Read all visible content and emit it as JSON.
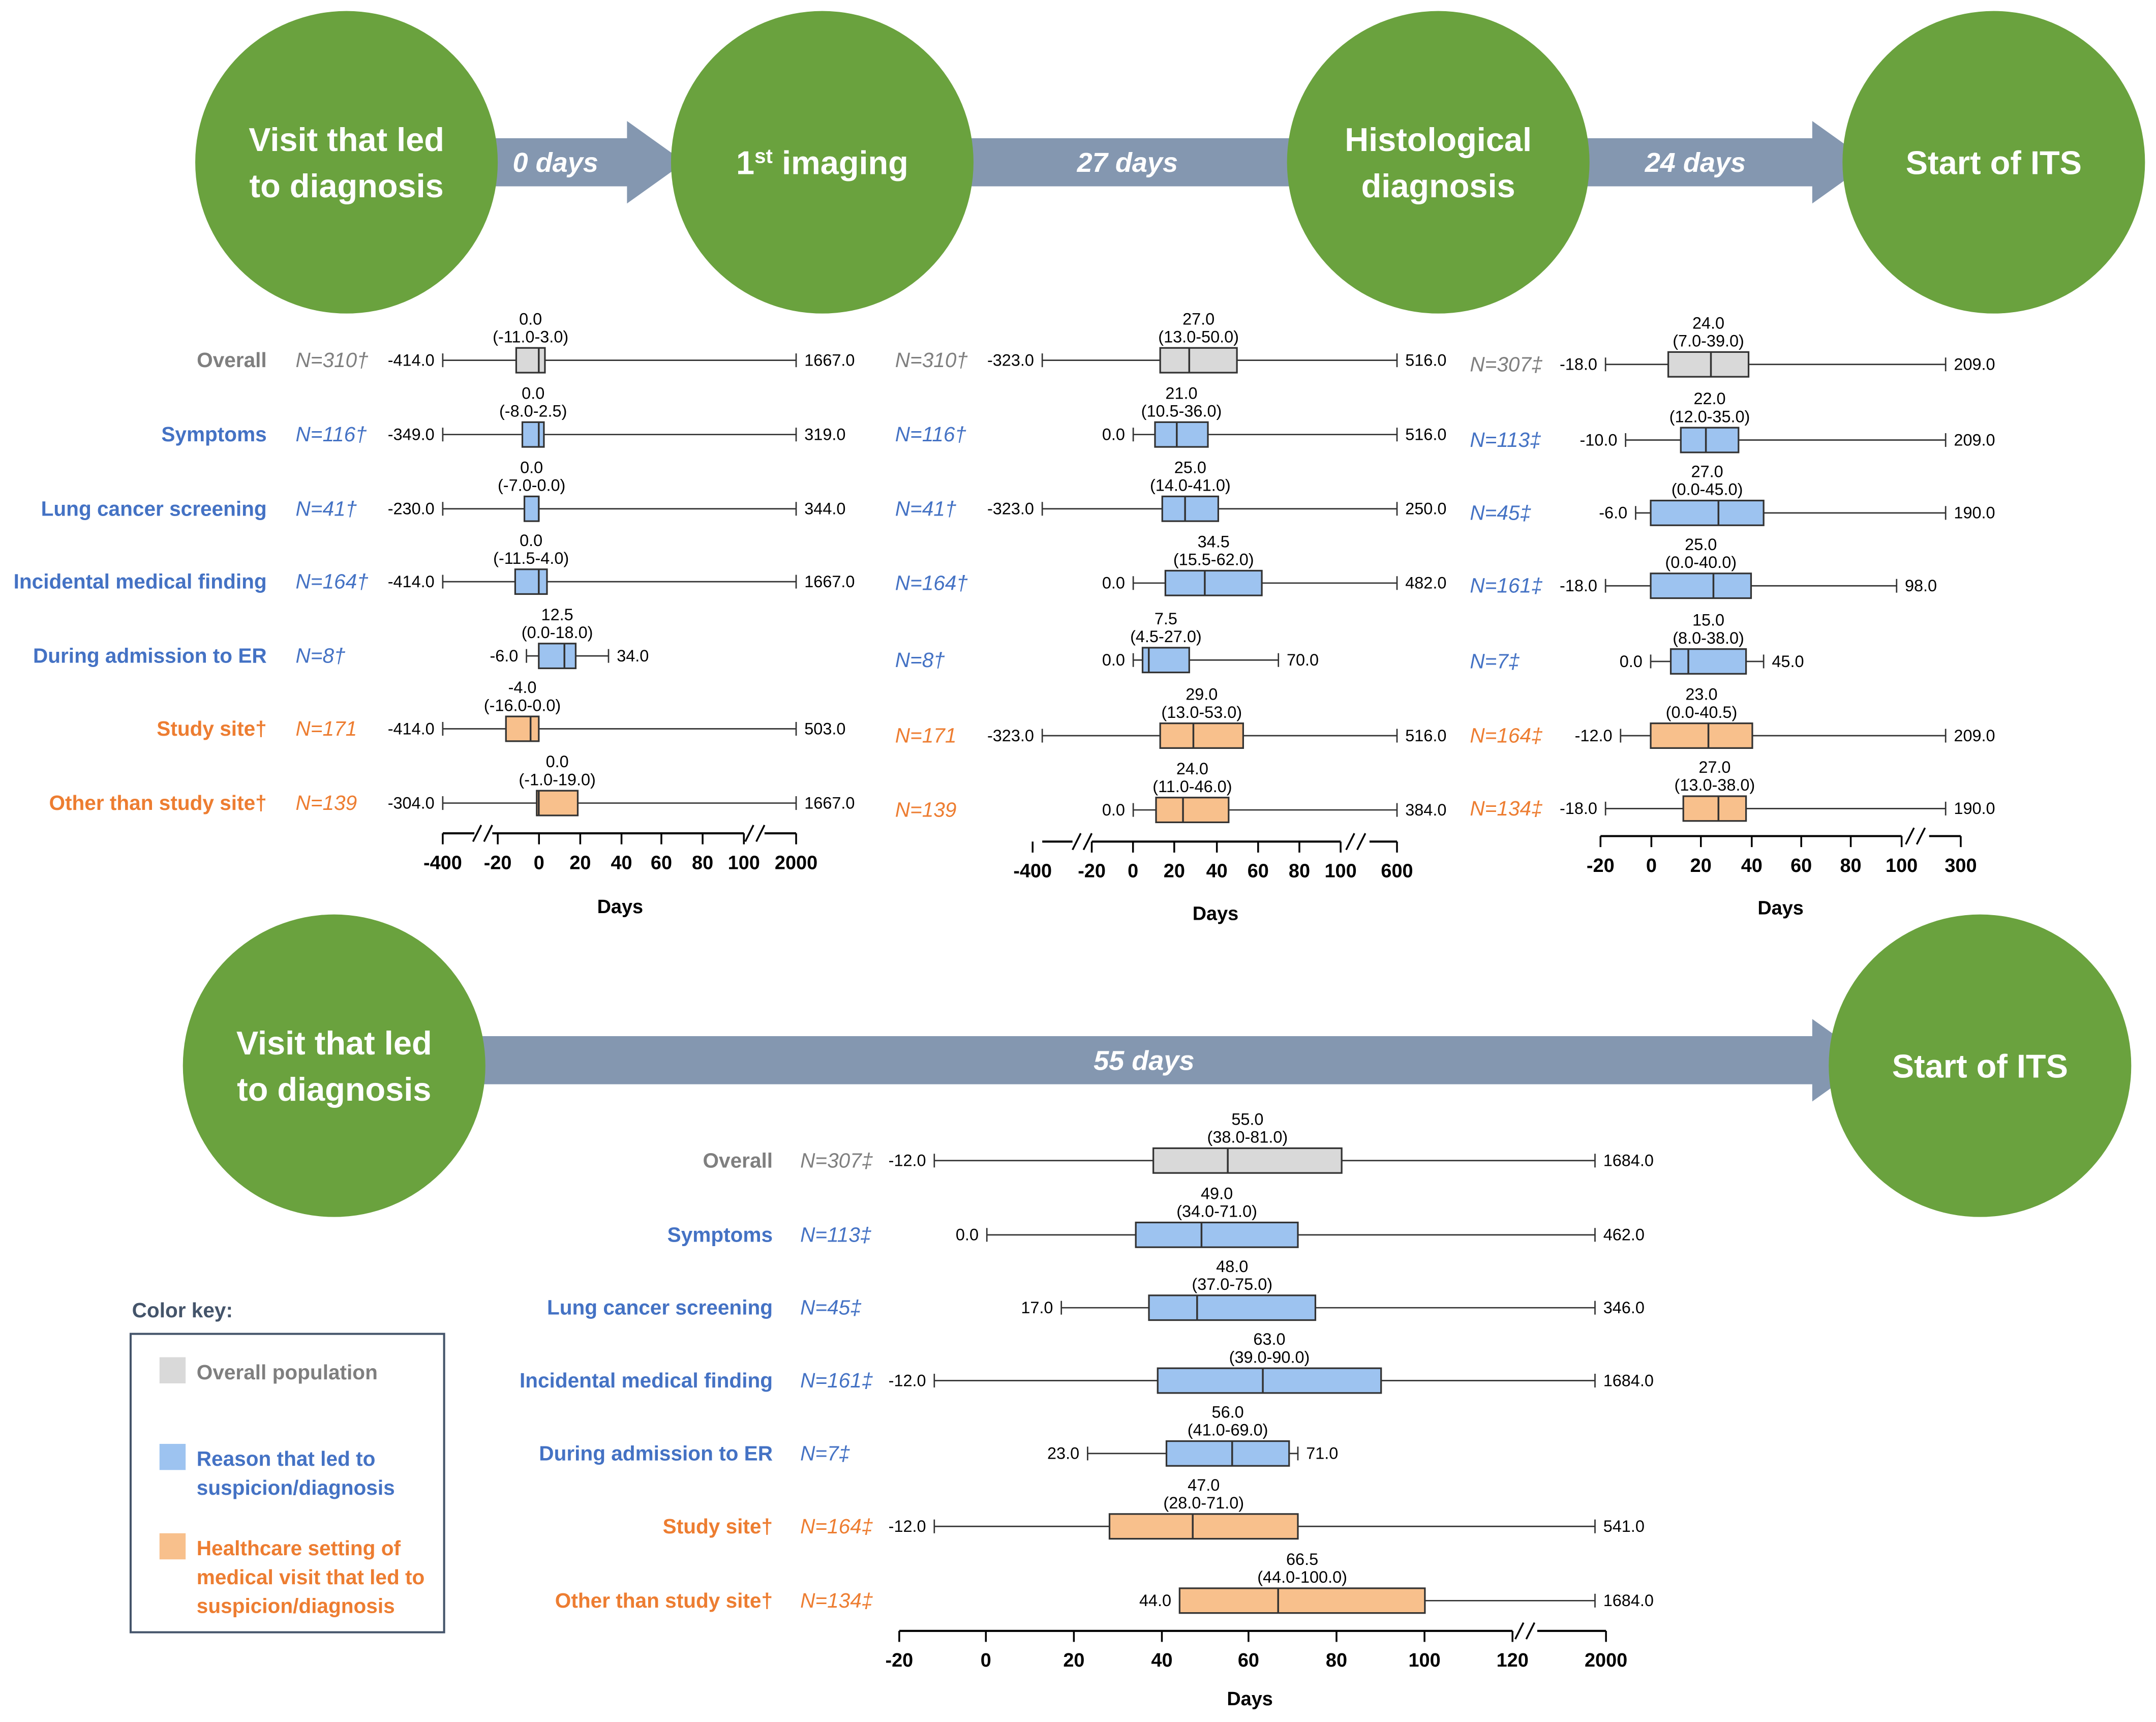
{
  "colors": {
    "circle": "#6aa23e",
    "arrow": "#8497b0",
    "overall_fill": "#d9d9d9",
    "overall_text": "#7f7f7f",
    "reason_fill": "#9dc3f0",
    "reason_text": "#4472c4",
    "setting_fill": "#f8c08c",
    "setting_text": "#ed7d31",
    "key_border": "#44546a"
  },
  "flow_top": {
    "circles": [
      [
        "Visit that led",
        "to diagnosis"
      ],
      [
        "1st imaging"
      ],
      [
        "Histological",
        "diagnosis"
      ],
      [
        "Start of ITS"
      ]
    ],
    "arrows": [
      "0 days",
      "27 days",
      "24 days"
    ]
  },
  "flow_bottom": {
    "circles": [
      [
        "Visit that led",
        "to diagnosis"
      ],
      [
        "Start of ITS"
      ]
    ],
    "arrows": [
      "55 days"
    ]
  },
  "row_labels": [
    {
      "label": "Overall",
      "group": "overall"
    },
    {
      "label": "Symptoms",
      "group": "reason"
    },
    {
      "label": "Lung cancer screening",
      "group": "reason"
    },
    {
      "label": "Incidental medical finding",
      "group": "reason"
    },
    {
      "label": "During admission to ER",
      "group": "reason"
    },
    {
      "label": "Study site†",
      "group": "setting"
    },
    {
      "label": "Other than study site†",
      "group": "setting"
    }
  ],
  "color_key": {
    "title": "Color key:",
    "items": [
      {
        "label": [
          "Overall population"
        ],
        "group": "overall"
      },
      {
        "label": [
          "Reason that led to",
          "suspicion/diagnosis"
        ],
        "group": "reason"
      },
      {
        "label": [
          "Healthcare setting of",
          "medical visit that led to",
          "suspicion/diagnosis"
        ],
        "group": "setting"
      }
    ]
  },
  "chart_data": [
    {
      "type": "boxplot",
      "title": "Visit that led to diagnosis to 1st imaging",
      "xlabel": "Days",
      "x_ticks": [
        "-400",
        "-20",
        "0",
        "20",
        "40",
        "60",
        "80",
        "100",
        "2000"
      ],
      "x_breaks": true,
      "rows": [
        {
          "n": "N=310†",
          "median": "0.0",
          "iqr": "(-11.0-3.0)",
          "min": "-414.0",
          "max": "1667.0",
          "q1": -11,
          "q3": 3,
          "med": 0
        },
        {
          "n": "N=116†",
          "median": "0.0",
          "iqr": "(-8.0-2.5)",
          "min": "-349.0",
          "max": "319.0",
          "q1": -8,
          "q3": 2.5,
          "med": 0
        },
        {
          "n": "N=41†",
          "median": "0.0",
          "iqr": "(-7.0-0.0)",
          "min": "-230.0",
          "max": "344.0",
          "q1": -7,
          "q3": 0,
          "med": 0
        },
        {
          "n": "N=164†",
          "median": "0.0",
          "iqr": "(-11.5-4.0)",
          "min": "-414.0",
          "max": "1667.0",
          "q1": -11.5,
          "q3": 4,
          "med": 0
        },
        {
          "n": "N=8†",
          "median": "12.5",
          "iqr": "(0.0-18.0)",
          "min": "-6.0",
          "max": "34.0",
          "q1": 0,
          "q3": 18,
          "med": 12.5
        },
        {
          "n": "N=171",
          "median": "-4.0",
          "iqr": "(-16.0-0.0)",
          "min": "-414.0",
          "max": "503.0",
          "q1": -16,
          "q3": 0,
          "med": -4
        },
        {
          "n": "N=139",
          "median": "0.0",
          "iqr": "(-1.0-19.0)",
          "min": "-304.0",
          "max": "1667.0",
          "q1": -1,
          "q3": 19,
          "med": 0
        }
      ]
    },
    {
      "type": "boxplot",
      "title": "1st imaging to histological diagnosis",
      "xlabel": "Days",
      "x_ticks": [
        "-400",
        "-20",
        "0",
        "20",
        "40",
        "60",
        "80",
        "100",
        "600"
      ],
      "x_breaks": true,
      "rows": [
        {
          "n": "N=310†",
          "median": "27.0",
          "iqr": "(13.0-50.0)",
          "min": "-323.0",
          "max": "516.0",
          "q1": 13,
          "q3": 50,
          "med": 27
        },
        {
          "n": "N=116†",
          "median": "21.0",
          "iqr": "(10.5-36.0)",
          "min": "0.0",
          "max": "516.0",
          "q1": 10.5,
          "q3": 36,
          "med": 21
        },
        {
          "n": "N=41†",
          "median": "25.0",
          "iqr": "(14.0-41.0)",
          "min": "-323.0",
          "max": "250.0",
          "q1": 14,
          "q3": 41,
          "med": 25
        },
        {
          "n": "N=164†",
          "median": "34.5",
          "iqr": "(15.5-62.0)",
          "min": "0.0",
          "max": "482.0",
          "q1": 15.5,
          "q3": 62,
          "med": 34.5
        },
        {
          "n": "N=8†",
          "median": "7.5",
          "iqr": "(4.5-27.0)",
          "min": "0.0",
          "max": "70.0",
          "q1": 4.5,
          "q3": 27,
          "med": 7.5
        },
        {
          "n": "N=171",
          "median": "29.0",
          "iqr": "(13.0-53.0)",
          "min": "-323.0",
          "max": "516.0",
          "q1": 13,
          "q3": 53,
          "med": 29
        },
        {
          "n": "N=139",
          "median": "24.0",
          "iqr": "(11.0-46.0)",
          "min": "0.0",
          "max": "384.0",
          "q1": 11,
          "q3": 46,
          "med": 24
        }
      ]
    },
    {
      "type": "boxplot",
      "title": "Histological diagnosis to start of ITS",
      "xlabel": "Days",
      "x_ticks": [
        "-20",
        "0",
        "20",
        "40",
        "60",
        "80",
        "100",
        "300"
      ],
      "x_breaks": true,
      "rows": [
        {
          "n": "N=307‡",
          "median": "24.0",
          "iqr": "(7.0-39.0)",
          "min": "-18.0",
          "max": "209.0",
          "q1": 7,
          "q3": 39,
          "med": 24
        },
        {
          "n": "N=113‡",
          "median": "22.0",
          "iqr": "(12.0-35.0)",
          "min": "-10.0",
          "max": "209.0",
          "q1": 12,
          "q3": 35,
          "med": 22
        },
        {
          "n": "N=45‡",
          "median": "27.0",
          "iqr": "(0.0-45.0)",
          "min": "-6.0",
          "max": "190.0",
          "q1": 0,
          "q3": 45,
          "med": 27
        },
        {
          "n": "N=161‡",
          "median": "25.0",
          "iqr": "(0.0-40.0)",
          "min": "-18.0",
          "max": "98.0",
          "q1": 0,
          "q3": 40,
          "med": 25
        },
        {
          "n": "N=7‡",
          "median": "15.0",
          "iqr": "(8.0-38.0)",
          "min": "0.0",
          "max": "45.0",
          "q1": 8,
          "q3": 38,
          "med": 15
        },
        {
          "n": "N=164‡",
          "median": "23.0",
          "iqr": "(0.0-40.5)",
          "min": "-12.0",
          "max": "209.0",
          "q1": 0,
          "q3": 40.5,
          "med": 23
        },
        {
          "n": "N=134‡",
          "median": "27.0",
          "iqr": "(13.0-38.0)",
          "min": "-18.0",
          "max": "190.0",
          "q1": 13,
          "q3": 38,
          "med": 27
        }
      ]
    },
    {
      "type": "boxplot",
      "title": "Visit that led to diagnosis to start of ITS",
      "xlabel": "Days",
      "x_ticks": [
        "-20",
        "0",
        "20",
        "40",
        "60",
        "80",
        "100",
        "120",
        "2000"
      ],
      "x_breaks": true,
      "rows": [
        {
          "n": "N=307‡",
          "median": "55.0",
          "iqr": "(38.0-81.0)",
          "min": "-12.0",
          "max": "1684.0",
          "q1": 38,
          "q3": 81,
          "med": 55
        },
        {
          "n": "N=113‡",
          "median": "49.0",
          "iqr": "(34.0-71.0)",
          "min": "0.0",
          "max": "462.0",
          "q1": 34,
          "q3": 71,
          "med": 49
        },
        {
          "n": "N=45‡",
          "median": "48.0",
          "iqr": "(37.0-75.0)",
          "min": "17.0",
          "max": "346.0",
          "q1": 37,
          "q3": 75,
          "med": 48
        },
        {
          "n": "N=161‡",
          "median": "63.0",
          "iqr": "(39.0-90.0)",
          "min": "-12.0",
          "max": "1684.0",
          "q1": 39,
          "q3": 90,
          "med": 63
        },
        {
          "n": "N=7‡",
          "median": "56.0",
          "iqr": "(41.0-69.0)",
          "min": "23.0",
          "max": "71.0",
          "q1": 41,
          "q3": 69,
          "med": 56
        },
        {
          "n": "N=164‡",
          "median": "47.0",
          "iqr": "(28.0-71.0)",
          "min": "-12.0",
          "max": "541.0",
          "q1": 28,
          "q3": 71,
          "med": 47
        },
        {
          "n": "N=134‡",
          "median": "66.5",
          "iqr": "(44.0-100.0)",
          "min": "44.0",
          "max": "1684.0",
          "q1": 44,
          "q3": 100,
          "med": 66.5
        }
      ]
    }
  ]
}
